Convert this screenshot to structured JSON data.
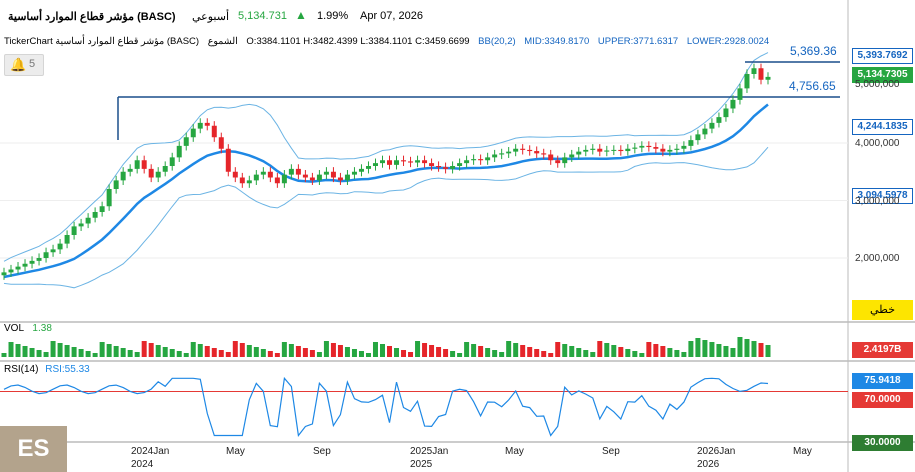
{
  "header": {
    "symbol_name": "مؤشر قطاع الموارد أساسية (BASC)",
    "period": "أسبوعي",
    "last_price": "5,134.731",
    "change_arrow": "▲",
    "change_pct": "1.99%",
    "date": "Apr 07, 2026"
  },
  "legend": {
    "app": "TickerChart",
    "symbol": "مؤشر قطاع الموارد أساسية (BASC)",
    "candles_label": "الشموع",
    "ohlc": "O:3384.1101  H:3482.4399  L:3384.1101  C:3459.6699",
    "bb": "BB(20,2)",
    "mid": "MID:3349.8170",
    "upper": "UPPER:3771.6317",
    "lower": "LOWER:2928.0024"
  },
  "alert": {
    "count": "5"
  },
  "price_axis": {
    "boxes": [
      {
        "text": "5,393.7692",
        "bg": "#ffffff",
        "fg": "#1565c0"
      },
      {
        "text": "5,134.7305",
        "bg": "#26a641",
        "fg": "#ffffff"
      },
      {
        "text": "4,244.1835",
        "bg": "#ffffff",
        "fg": "#1565c0"
      },
      {
        "text": "3,094.5978",
        "bg": "#ffffff",
        "fg": "#1565c0"
      }
    ],
    "ticks": [
      "5,000,000",
      "4,000,000",
      "3,000,000",
      "2,000,000"
    ],
    "type_button": "خطي"
  },
  "levels": {
    "resistance_1": "5,369.36",
    "resistance_2": "4,756.65"
  },
  "volume_pane": {
    "label": "VOL",
    "value": "1.38",
    "axis_value": "2.4197B"
  },
  "rsi_pane": {
    "label": "RSI(14)",
    "value": "RSI:55.33",
    "axis": [
      {
        "text": "75.9418",
        "bg": "#1e88e5"
      },
      {
        "text": "70.0000",
        "bg": "#e53935"
      },
      {
        "text": "30.0000",
        "bg": "#2e7d32"
      }
    ]
  },
  "time_axis": {
    "months": [
      "2024Jan",
      "May",
      "Sep",
      "2025Jan",
      "May",
      "Sep",
      "2026Jan",
      "May"
    ],
    "years": [
      "2024",
      "2025",
      "2026"
    ]
  },
  "badge": "ES",
  "colors": {
    "up": "#26a641",
    "down": "#e5252a",
    "band": "#6cb4e4",
    "mid": "#1e88e5",
    "level": "#1a4f8b"
  },
  "chart_data": {
    "type": "candlestick",
    "x_start": "2023-07",
    "x_end": "2026-04",
    "ylim": [
      1500000,
      5800000
    ],
    "levels": [
      5369.36,
      4756.65
    ],
    "close_approx": [
      1.75,
      1.8,
      1.85,
      1.9,
      1.95,
      2.0,
      2.1,
      2.15,
      2.25,
      2.4,
      2.55,
      2.6,
      2.7,
      2.8,
      2.9,
      3.2,
      3.35,
      3.5,
      3.55,
      3.7,
      3.55,
      3.4,
      3.5,
      3.6,
      3.75,
      3.95,
      4.1,
      4.25,
      4.35,
      4.3,
      4.1,
      3.9,
      3.5,
      3.4,
      3.3,
      3.35,
      3.45,
      3.5,
      3.4,
      3.3,
      3.45,
      3.55,
      3.45,
      3.4,
      3.35,
      3.45,
      3.5,
      3.4,
      3.35,
      3.45,
      3.5,
      3.55,
      3.6,
      3.65,
      3.7,
      3.62,
      3.7,
      3.68,
      3.66,
      3.7,
      3.65,
      3.6,
      3.58,
      3.55,
      3.6,
      3.65,
      3.7,
      3.72,
      3.7,
      3.75,
      3.8,
      3.82,
      3.85,
      3.9,
      3.88,
      3.86,
      3.82,
      3.8,
      3.7,
      3.65,
      3.75,
      3.8,
      3.85,
      3.88,
      3.9,
      3.85,
      3.87,
      3.88,
      3.86,
      3.9,
      3.92,
      3.95,
      3.93,
      3.9,
      3.85,
      3.88,
      3.9,
      3.95,
      4.05,
      4.15,
      4.25,
      4.35,
      4.45,
      4.6,
      4.75,
      4.95,
      5.2,
      5.3,
      5.1,
      5.15
    ]
  }
}
